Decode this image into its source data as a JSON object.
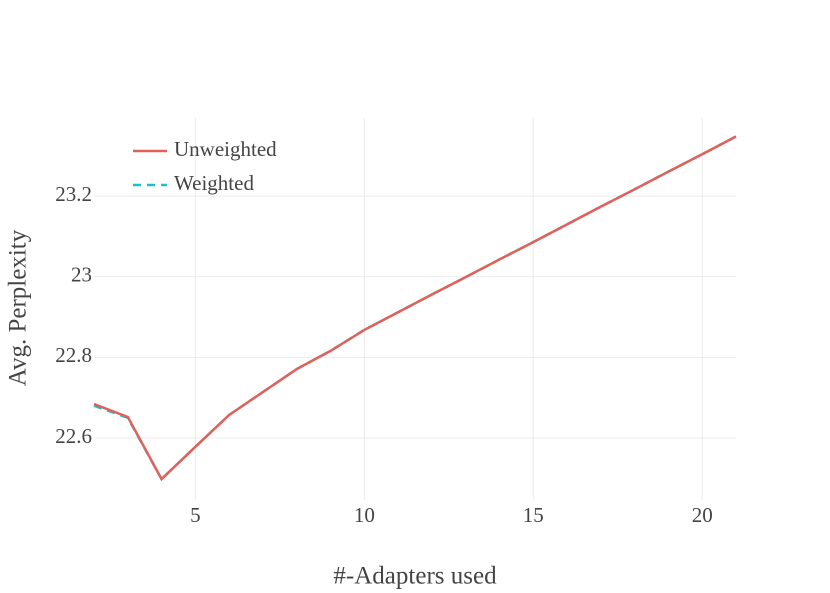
{
  "chart_data": {
    "type": "line",
    "x_label": "#-Adapters used",
    "y_label": "Avg. Perplexity",
    "x": [
      2,
      3,
      4,
      5,
      6,
      7,
      8,
      9,
      10,
      11,
      12,
      13,
      14,
      15,
      16,
      17,
      18,
      19,
      20,
      21
    ],
    "series": [
      {
        "name": "Unweighted",
        "color": "#e0605a",
        "values": [
          22.684,
          22.652,
          22.498,
          22.578,
          22.657,
          22.714,
          22.771,
          22.816,
          22.868,
          22.912,
          22.956,
          22.999,
          23.043,
          23.086,
          23.13,
          23.174,
          23.217,
          23.261,
          23.304,
          23.348
        ]
      },
      {
        "name": "Weighted",
        "color": "#1fbfd0",
        "dash": true,
        "values": [
          22.68,
          22.65,
          22.498,
          22.578,
          22.657,
          22.714,
          22.771,
          22.816,
          22.868,
          22.912,
          22.956,
          22.999,
          23.043,
          23.086,
          23.13,
          23.174,
          23.217,
          23.261,
          23.304,
          23.348
        ]
      }
    ],
    "xlim": [
      2,
      21
    ],
    "ylim": [
      22.446,
      23.394
    ],
    "xticks": [
      5,
      10,
      15,
      20
    ],
    "yticks": [
      22.6,
      22.8,
      23,
      23.2
    ],
    "grid": true,
    "legend": "top-left"
  }
}
